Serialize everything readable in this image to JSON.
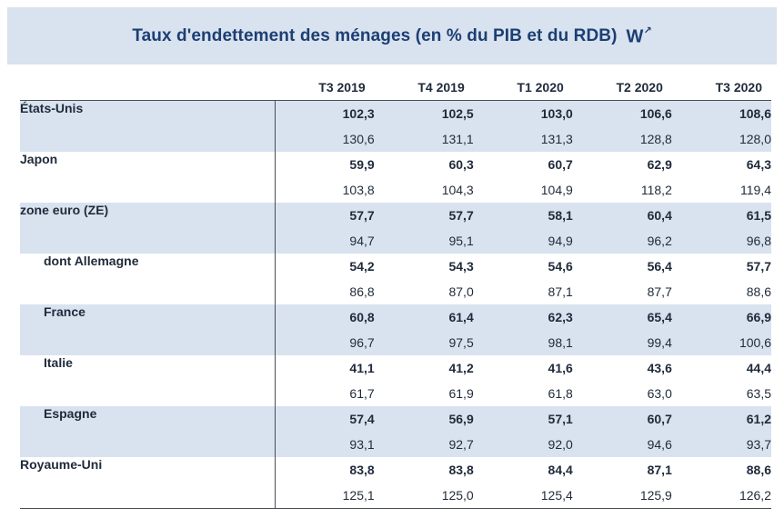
{
  "title": "Taux d'endettement des ménages (en % du PIB et du RDB)",
  "title_icon": "w-arrow-icon",
  "colors": {
    "band": "#d9e2ef",
    "title": "#1c3f73"
  },
  "columns": [
    "T3 2019",
    "T4 2019",
    "T1 2020",
    "T2 2020",
    "T3 2020"
  ],
  "rows": [
    {
      "label": "États-Unis",
      "gdp": [
        "102,3",
        "102,5",
        "103,0",
        "106,6",
        "108,6"
      ],
      "rdb": [
        "130,6",
        "131,1",
        "131,3",
        "128,8",
        "128,0"
      ]
    },
    {
      "label": "Japon",
      "gdp": [
        "59,9",
        "60,3",
        "60,7",
        "62,9",
        "64,3"
      ],
      "rdb": [
        "103,8",
        "104,3",
        "104,9",
        "118,2",
        "119,4"
      ]
    },
    {
      "label": "zone euro (ZE)",
      "gdp": [
        "57,7",
        "57,7",
        "58,1",
        "60,4",
        "61,5"
      ],
      "rdb": [
        "94,7",
        "95,1",
        "94,9",
        "96,2",
        "96,8"
      ]
    },
    {
      "label": "dont Allemagne",
      "gdp": [
        "54,2",
        "54,3",
        "54,6",
        "56,4",
        "57,7"
      ],
      "rdb": [
        "86,8",
        "87,0",
        "87,1",
        "87,7",
        "88,6"
      ]
    },
    {
      "label": "France",
      "gdp": [
        "60,8",
        "61,4",
        "62,3",
        "65,4",
        "66,9"
      ],
      "rdb": [
        "96,7",
        "97,5",
        "98,1",
        "99,4",
        "100,6"
      ]
    },
    {
      "label": "Italie",
      "gdp": [
        "41,1",
        "41,2",
        "41,6",
        "43,6",
        "44,4"
      ],
      "rdb": [
        "61,7",
        "61,9",
        "61,8",
        "63,0",
        "63,5"
      ]
    },
    {
      "label": "Espagne",
      "gdp": [
        "57,4",
        "56,9",
        "57,1",
        "60,7",
        "61,2"
      ],
      "rdb": [
        "93,1",
        "92,7",
        "92,0",
        "94,6",
        "93,7"
      ]
    },
    {
      "label": "Royaume-Uni",
      "gdp": [
        "83,8",
        "83,8",
        "84,4",
        "87,1",
        "88,6"
      ],
      "rdb": [
        "125,1",
        "125,0",
        "125,4",
        "125,9",
        "126,2"
      ]
    }
  ]
}
